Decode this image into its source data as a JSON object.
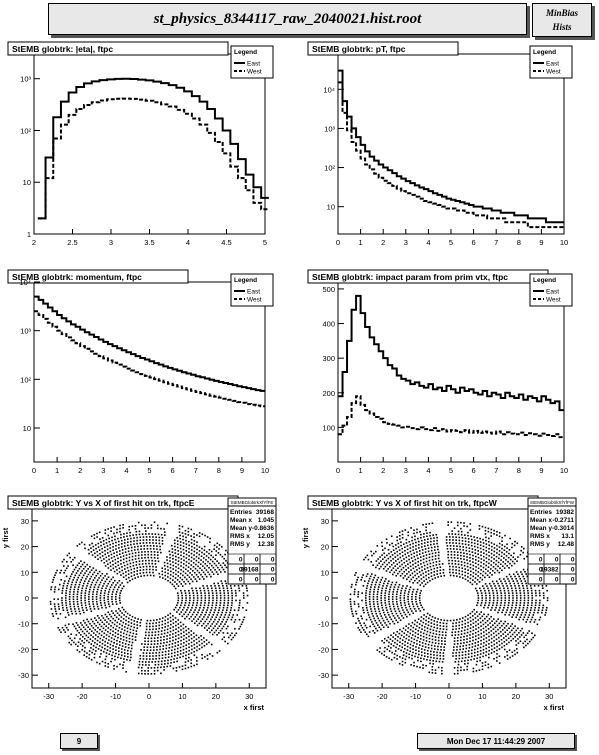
{
  "header": {
    "title": "st_physics_8344117_raw_2040021.hist.root",
    "badge_line1": "MinBias",
    "badge_line2": "Hists"
  },
  "footer": {
    "page": "9",
    "date": "Mon Dec 17 11:44:29 2007"
  },
  "chart_data": [
    {
      "type": "line",
      "title": "StEMB globtrk: |eta|, ftpc",
      "xlim": [
        2,
        5
      ],
      "ylim": [
        1,
        3000
      ],
      "log_y": true,
      "x_ticks": [
        "2",
        "2.5",
        "3",
        "3.5",
        "4",
        "4.5",
        "5"
      ],
      "y_ticks": [
        "1",
        "10",
        "10²",
        "10³"
      ],
      "legend": {
        "title": "Legend",
        "entries": [
          "East",
          "West"
        ],
        "placement": "top-right"
      },
      "x": [
        2.1,
        2.2,
        2.3,
        2.4,
        2.5,
        2.6,
        2.7,
        2.8,
        2.9,
        3.0,
        3.1,
        3.2,
        3.3,
        3.4,
        3.5,
        3.6,
        3.7,
        3.8,
        3.9,
        4.0,
        4.1,
        4.2,
        4.3,
        4.4,
        4.5,
        4.6,
        4.7,
        4.8,
        4.9,
        5.0
      ],
      "series": [
        {
          "name": "East",
          "values": [
            2,
            30,
            180,
            360,
            540,
            690,
            810,
            890,
            940,
            970,
            990,
            995,
            985,
            960,
            930,
            880,
            820,
            750,
            670,
            570,
            460,
            360,
            260,
            170,
            100,
            55,
            28,
            14,
            8,
            5
          ]
        },
        {
          "name": "West",
          "values": [
            2,
            12,
            70,
            130,
            200,
            260,
            310,
            350,
            380,
            400,
            410,
            412,
            408,
            395,
            375,
            350,
            320,
            290,
            250,
            210,
            170,
            130,
            90,
            60,
            36,
            20,
            12,
            7,
            4,
            3
          ]
        }
      ]
    },
    {
      "type": "line",
      "title": "StEMB globtrk: pT, ftpc",
      "xlim": [
        0,
        10
      ],
      "ylim": [
        2,
        80000
      ],
      "log_y": true,
      "x_ticks": [
        "0",
        "1",
        "2",
        "3",
        "4",
        "5",
        "6",
        "7",
        "8",
        "9",
        "10"
      ],
      "y_ticks": [
        "10",
        "10²",
        "10³",
        "10⁴"
      ],
      "legend": {
        "title": "Legend",
        "entries": [
          "East",
          "West"
        ],
        "placement": "top-right"
      },
      "x": [
        0.1,
        0.3,
        0.5,
        0.7,
        0.9,
        1.1,
        1.3,
        1.5,
        1.7,
        1.9,
        2.1,
        2.3,
        2.5,
        2.7,
        2.9,
        3.1,
        3.3,
        3.5,
        3.7,
        3.9,
        4.1,
        4.3,
        4.5,
        4.7,
        4.9,
        5.1,
        5.3,
        5.5,
        5.7,
        5.9,
        6.1,
        6.3,
        6.5,
        6.7,
        6.9,
        7.1,
        7.3,
        7.5,
        7.7,
        7.9,
        8.1,
        8.3,
        8.5,
        8.7,
        8.9,
        9.1,
        9.3,
        9.5,
        9.7,
        9.9
      ],
      "series": [
        {
          "name": "East",
          "values": [
            30000,
            5000,
            2000,
            1000,
            600,
            380,
            260,
            190,
            150,
            120,
            100,
            85,
            72,
            60,
            52,
            45,
            40,
            35,
            31,
            28,
            25,
            22,
            20,
            18,
            16,
            15,
            14,
            13,
            12,
            11,
            10,
            10,
            9,
            9,
            8,
            8,
            7,
            7,
            7,
            6,
            6,
            6,
            5,
            5,
            5,
            5,
            4,
            4,
            4,
            4
          ]
        },
        {
          "name": "West",
          "values": [
            15000,
            2500,
            900,
            450,
            270,
            170,
            120,
            90,
            70,
            55,
            46,
            40,
            34,
            29,
            25,
            22,
            20,
            18,
            16,
            14,
            13,
            12,
            11,
            10,
            9,
            9,
            8,
            8,
            7,
            7,
            6,
            6,
            6,
            5,
            5,
            5,
            5,
            4,
            4,
            4,
            4,
            4,
            3,
            3,
            3,
            3,
            3,
            3,
            3,
            3
          ]
        }
      ]
    },
    {
      "type": "line",
      "title": "StEMB globtrk: momentum, ftpc",
      "xlim": [
        0,
        10
      ],
      "ylim": [
        2,
        10000
      ],
      "log_y": true,
      "x_ticks": [
        "0",
        "1",
        "2",
        "3",
        "4",
        "5",
        "6",
        "7",
        "8",
        "9",
        "10"
      ],
      "y_ticks": [
        "10",
        "10²",
        "10³",
        "10⁴"
      ],
      "legend": {
        "title": "Legend",
        "entries": [
          "East",
          "West"
        ],
        "placement": "top-right"
      },
      "x": [
        0.1,
        0.3,
        0.5,
        0.7,
        0.9,
        1.1,
        1.3,
        1.5,
        1.7,
        1.9,
        2.1,
        2.3,
        2.5,
        2.7,
        2.9,
        3.1,
        3.3,
        3.5,
        3.7,
        3.9,
        4.1,
        4.3,
        4.5,
        4.7,
        4.9,
        5.1,
        5.3,
        5.5,
        5.7,
        5.9,
        6.1,
        6.3,
        6.5,
        6.7,
        6.9,
        7.1,
        7.3,
        7.5,
        7.7,
        7.9,
        8.1,
        8.3,
        8.5,
        8.7,
        8.9,
        9.1,
        9.3,
        9.5,
        9.7,
        9.9
      ],
      "series": [
        {
          "name": "East",
          "values": [
            5000,
            4300,
            3600,
            3000,
            2500,
            2100,
            1800,
            1550,
            1350,
            1200,
            1050,
            930,
            830,
            740,
            660,
            590,
            530,
            480,
            435,
            395,
            360,
            330,
            300,
            275,
            255,
            235,
            215,
            200,
            185,
            172,
            160,
            150,
            140,
            132,
            124,
            116,
            110,
            104,
            98,
            93,
            88,
            84,
            80,
            76,
            72,
            69,
            66,
            63,
            60,
            58
          ]
        },
        {
          "name": "West",
          "values": [
            2500,
            2100,
            1750,
            1450,
            1200,
            1000,
            850,
            730,
            630,
            550,
            480,
            425,
            375,
            335,
            300,
            270,
            243,
            220,
            200,
            182,
            166,
            152,
            140,
            128,
            118,
            109,
            101,
            94,
            87,
            81,
            76,
            71,
            66,
            62,
            58,
            55,
            52,
            49,
            46,
            44,
            42,
            40,
            38,
            36,
            34,
            33,
            31,
            30,
            29,
            28
          ]
        }
      ]
    },
    {
      "type": "line",
      "title": "StEMB globtrk: impact param from prim vtx, ftpc",
      "xlim": [
        0,
        10
      ],
      "ylim": [
        0,
        520
      ],
      "log_y": false,
      "x_ticks": [
        "0",
        "1",
        "2",
        "3",
        "4",
        "5",
        "6",
        "7",
        "8",
        "9",
        "10"
      ],
      "y_ticks": [
        "100",
        "200",
        "300",
        "400",
        "500"
      ],
      "legend": {
        "title": "Legend",
        "entries": [
          "East",
          "West"
        ],
        "placement": "top-right"
      },
      "x": [
        0.1,
        0.3,
        0.5,
        0.7,
        0.9,
        1.1,
        1.3,
        1.5,
        1.7,
        1.9,
        2.1,
        2.3,
        2.5,
        2.7,
        2.9,
        3.1,
        3.3,
        3.5,
        3.7,
        3.9,
        4.1,
        4.3,
        4.5,
        4.7,
        4.9,
        5.1,
        5.3,
        5.5,
        5.7,
        5.9,
        6.1,
        6.3,
        6.5,
        6.7,
        6.9,
        7.1,
        7.3,
        7.5,
        7.7,
        7.9,
        8.1,
        8.3,
        8.5,
        8.7,
        8.9,
        9.1,
        9.3,
        9.5,
        9.7,
        9.9
      ],
      "series": [
        {
          "name": "East",
          "values": [
            190,
            260,
            350,
            440,
            480,
            430,
            390,
            360,
            340,
            320,
            300,
            280,
            270,
            250,
            240,
            235,
            225,
            230,
            220,
            215,
            225,
            210,
            215,
            205,
            220,
            210,
            200,
            215,
            205,
            210,
            200,
            195,
            205,
            190,
            200,
            195,
            185,
            200,
            190,
            185,
            195,
            180,
            190,
            185,
            175,
            190,
            180,
            170,
            175,
            150
          ]
        },
        {
          "name": "West",
          "values": [
            80,
            105,
            130,
            170,
            190,
            165,
            150,
            140,
            130,
            125,
            115,
            110,
            108,
            105,
            100,
            102,
            98,
            95,
            100,
            95,
            92,
            98,
            90,
            95,
            88,
            92,
            90,
            86,
            92,
            85,
            90,
            84,
            88,
            85,
            82,
            88,
            80,
            86,
            82,
            80,
            85,
            78,
            83,
            80,
            76,
            82,
            78,
            75,
            80,
            72
          ]
        }
      ]
    },
    {
      "type": "scatter",
      "title": "StEMB globtrk: Y vs X of first hit on trk, ftpcE",
      "xlabel": "x first",
      "ylabel": "y first",
      "xlim": [
        -35,
        35
      ],
      "ylim": [
        -35,
        35
      ],
      "x_ticks": [
        "-30",
        "-20",
        "-10",
        "0",
        "10",
        "20",
        "30"
      ],
      "y_ticks": [
        "-30",
        "-20",
        "-10",
        "0",
        "10",
        "20",
        "30"
      ],
      "ring": {
        "inner_radius": 8,
        "outer_radius": 30,
        "gap_angles_deg": [
          20,
          75,
          140,
          200,
          260,
          320
        ]
      },
      "stats": {
        "name": "StEMBGlobtrkXfYfFE",
        "rows": [
          [
            "Entries",
            "39168"
          ],
          [
            "Mean x",
            "1.045"
          ],
          [
            "Mean y",
            "-0.8636"
          ],
          [
            "RMS x",
            "12.05"
          ],
          [
            "RMS y",
            "12.38"
          ]
        ],
        "grid": [
          [
            "0",
            "0",
            "0"
          ],
          [
            "0",
            "39168",
            "0"
          ],
          [
            "0",
            "0",
            "0"
          ]
        ]
      }
    },
    {
      "type": "scatter",
      "title": "StEMB globtrk: Y vs X of first hit on trk, ftpcW",
      "xlabel": "x first",
      "ylabel": "y first",
      "xlim": [
        -35,
        35
      ],
      "ylim": [
        -35,
        35
      ],
      "x_ticks": [
        "-30",
        "-20",
        "-10",
        "0",
        "10",
        "20",
        "30"
      ],
      "y_ticks": [
        "-30",
        "-20",
        "-10",
        "0",
        "10",
        "20",
        "30"
      ],
      "ring": {
        "inner_radius": 8,
        "outer_radius": 30,
        "gap_angles_deg": [
          30,
          95,
          155,
          215,
          270,
          335
        ]
      },
      "stats": {
        "name": "StEMBGlobtrkXfYfFW",
        "rows": [
          [
            "Entries",
            "19382"
          ],
          [
            "Mean x",
            "-0.2711"
          ],
          [
            "Mean y",
            "-0.3014"
          ],
          [
            "RMS x",
            "13.1"
          ],
          [
            "RMS y",
            "12.48"
          ]
        ],
        "grid": [
          [
            "0",
            "0",
            "0"
          ],
          [
            "0",
            "19382",
            "0"
          ],
          [
            "0",
            "0",
            "0"
          ]
        ]
      }
    }
  ]
}
